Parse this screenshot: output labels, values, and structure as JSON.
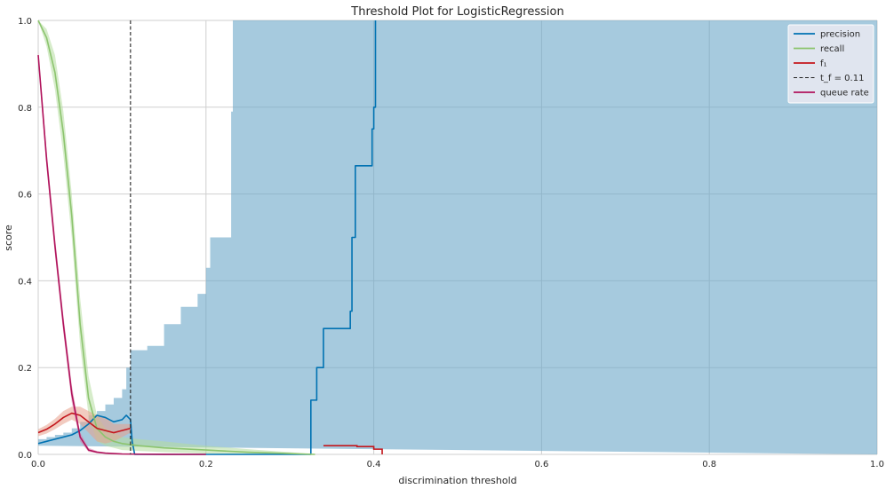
{
  "chart_data": {
    "type": "line",
    "title": "Threshold Plot for LogisticRegression",
    "xlabel": "discrimination threshold",
    "ylabel": "score",
    "xlim": [
      0.0,
      1.0
    ],
    "ylim": [
      0.0,
      1.0
    ],
    "x_ticks": [
      "0.0",
      "0.2",
      "0.4",
      "0.6",
      "0.8",
      "1.0"
    ],
    "y_ticks": [
      "0.0",
      "0.2",
      "0.4",
      "0.6",
      "0.8",
      "1.0"
    ],
    "grid": true,
    "legend_position": "top-right",
    "threshold": {
      "label": "t_f = 0.11",
      "value": 0.11,
      "color": "#222222"
    },
    "series": [
      {
        "name": "precision",
        "color": "#0072b2",
        "band_color": "#6aa6c8",
        "x": [
          0.0,
          0.01,
          0.02,
          0.03,
          0.04,
          0.05,
          0.06,
          0.07,
          0.08,
          0.09,
          0.1,
          0.105,
          0.11,
          0.112,
          0.115,
          0.325,
          0.325,
          0.33,
          0.332,
          0.332,
          0.34,
          0.34,
          0.372,
          0.372,
          0.374,
          0.374,
          0.378,
          0.378,
          0.398,
          0.398,
          0.4,
          0.4,
          0.402,
          0.402
        ],
        "values": [
          0.025,
          0.03,
          0.035,
          0.04,
          0.045,
          0.055,
          0.07,
          0.09,
          0.085,
          0.075,
          0.08,
          0.09,
          0.08,
          0.03,
          0.0,
          0.0,
          0.125,
          0.125,
          0.125,
          0.2,
          0.2,
          0.29,
          0.29,
          0.33,
          0.33,
          0.5,
          0.5,
          0.665,
          0.665,
          0.75,
          0.75,
          0.8,
          0.8,
          1.0
        ],
        "band_upper": [
          0.035,
          0.04,
          0.045,
          0.05,
          0.06,
          0.075,
          0.09,
          0.1,
          0.115,
          0.13,
          0.15,
          0.2,
          0.24,
          0.24,
          0.25,
          0.3,
          0.34,
          0.37,
          0.43,
          0.5,
          0.5,
          0.79,
          1.0,
          1.0,
          1.0,
          1.0,
          1.0,
          1.0,
          1.0,
          1.0,
          1.0,
          1.0,
          1.0,
          1.0
        ],
        "band_lower": [
          0.02,
          0.022,
          0.025,
          0.03,
          0.035,
          0.04,
          0.05,
          0.06,
          0.055,
          0.05,
          0.04,
          0.02,
          0.0,
          0.0,
          0.0,
          0.0,
          0.0,
          0.0,
          0.0,
          0.0,
          0.0,
          0.0,
          0.0,
          0.0,
          0.0,
          0.0,
          0.0,
          0.0,
          0.0,
          0.0,
          0.0,
          0.0,
          0.0,
          0.0
        ],
        "band_x": [
          0.0,
          0.01,
          0.02,
          0.03,
          0.04,
          0.05,
          0.06,
          0.07,
          0.08,
          0.09,
          0.1,
          0.105,
          0.11,
          0.12,
          0.13,
          0.15,
          0.17,
          0.19,
          0.2,
          0.205,
          0.228,
          0.23,
          0.232,
          0.3,
          0.4,
          0.5,
          0.6,
          0.7,
          0.8,
          0.9,
          0.95,
          0.98,
          0.99,
          1.0
        ]
      },
      {
        "name": "recall",
        "color": "#8cc46e",
        "band_color": "#b5dc9e",
        "x": [
          0.0,
          0.01,
          0.02,
          0.03,
          0.04,
          0.05,
          0.06,
          0.07,
          0.08,
          0.09,
          0.1,
          0.12,
          0.15,
          0.2,
          0.25,
          0.3,
          0.33
        ],
        "values": [
          1.0,
          0.96,
          0.88,
          0.74,
          0.55,
          0.3,
          0.13,
          0.06,
          0.04,
          0.03,
          0.025,
          0.02,
          0.015,
          0.01,
          0.005,
          0.002,
          0.0
        ],
        "band_upper": [
          1.0,
          0.98,
          0.92,
          0.79,
          0.6,
          0.36,
          0.18,
          0.09,
          0.06,
          0.05,
          0.04,
          0.035,
          0.03,
          0.02,
          0.012,
          0.005,
          0.0
        ],
        "band_lower": [
          1.0,
          0.94,
          0.84,
          0.69,
          0.5,
          0.25,
          0.09,
          0.03,
          0.02,
          0.015,
          0.01,
          0.008,
          0.005,
          0.002,
          0.0,
          0.0,
          0.0
        ]
      },
      {
        "name": "f₁",
        "color": "#c4161c",
        "band_color": "#e7a08c",
        "x": [
          0.0,
          0.01,
          0.02,
          0.03,
          0.04,
          0.05,
          0.06,
          0.07,
          0.08,
          0.09,
          0.1,
          0.11
        ],
        "values": [
          0.05,
          0.058,
          0.07,
          0.085,
          0.095,
          0.09,
          0.075,
          0.06,
          0.055,
          0.05,
          0.055,
          0.06
        ],
        "band_upper": [
          0.058,
          0.068,
          0.082,
          0.1,
          0.11,
          0.11,
          0.1,
          0.09,
          0.085,
          0.07,
          0.07,
          0.07
        ],
        "band_lower": [
          0.042,
          0.048,
          0.058,
          0.07,
          0.08,
          0.07,
          0.05,
          0.03,
          0.025,
          0.03,
          0.04,
          0.05
        ],
        "segment2_x": [
          0.34,
          0.38,
          0.38,
          0.4,
          0.4,
          0.41,
          0.41
        ],
        "segment2_values": [
          0.02,
          0.02,
          0.018,
          0.018,
          0.012,
          0.012,
          0.0
        ]
      },
      {
        "name": "queue rate",
        "color": "#b0125b",
        "band_color": "#d97aa6",
        "x": [
          0.0,
          0.005,
          0.01,
          0.02,
          0.03,
          0.04,
          0.05,
          0.06,
          0.07,
          0.08,
          0.09,
          0.1,
          0.12,
          0.15,
          0.2
        ],
        "values": [
          0.92,
          0.8,
          0.68,
          0.48,
          0.3,
          0.14,
          0.04,
          0.01,
          0.005,
          0.003,
          0.002,
          0.001,
          0.0005,
          0.0002,
          0.0
        ],
        "band_upper": [
          0.93,
          0.82,
          0.7,
          0.5,
          0.32,
          0.16,
          0.05,
          0.015,
          0.008,
          0.004,
          0.003,
          0.002,
          0.001,
          0.0005,
          0.0
        ],
        "band_lower": [
          0.91,
          0.78,
          0.66,
          0.46,
          0.28,
          0.12,
          0.03,
          0.006,
          0.003,
          0.002,
          0.001,
          0.0005,
          0.0,
          0.0,
          0.0
        ]
      }
    ]
  }
}
